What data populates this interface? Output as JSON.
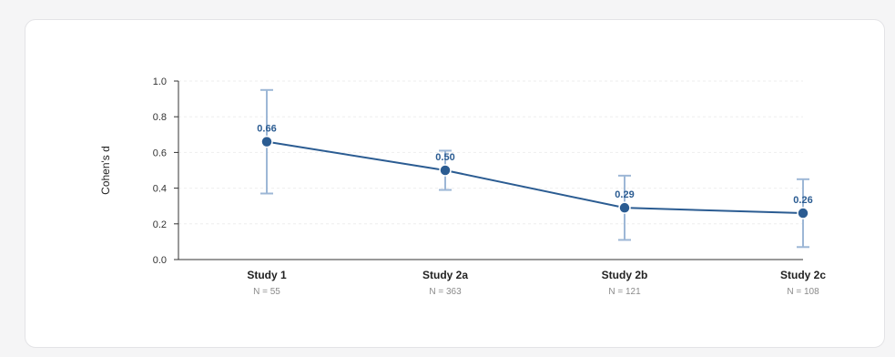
{
  "chart_data": {
    "type": "line",
    "title": "",
    "xlabel": "",
    "ylabel": "Cohen's d",
    "ylim": [
      0,
      1.0
    ],
    "yticks": [
      "0.0",
      "0.2",
      "0.4",
      "0.6",
      "0.8",
      "1.0"
    ],
    "grid": true,
    "categories": [
      "Study 1",
      "Study 2a",
      "Study 2b",
      "Study 2c"
    ],
    "sample_sizes": [
      "N = 55",
      "N = 363",
      "N = 121",
      "N = 108"
    ],
    "values": [
      0.66,
      0.5,
      0.29,
      0.26
    ],
    "value_labels": [
      "0.66",
      "0.50",
      "0.29",
      "0.26"
    ],
    "error_low": [
      0.37,
      0.39,
      0.11,
      0.07
    ],
    "error_high": [
      0.95,
      0.61,
      0.47,
      0.45
    ],
    "colors": {
      "line": "#2b5c92",
      "error_bar": "#9db7d6",
      "grid": "#eeeeee",
      "axis": "#333333"
    }
  }
}
